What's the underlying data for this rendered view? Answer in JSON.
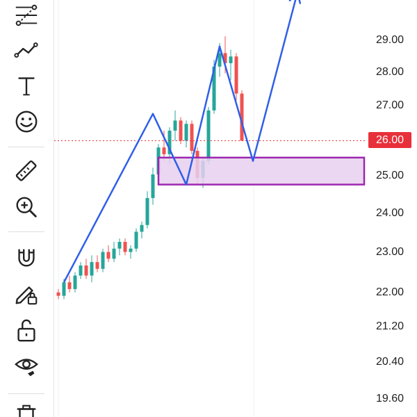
{
  "toolbar": {
    "tools": [
      {
        "name": "fib-retracement-icon"
      },
      {
        "name": "trend-line-icon"
      },
      {
        "name": "text-icon"
      },
      {
        "name": "emoji-icon"
      },
      {
        "name": "ruler-icon"
      },
      {
        "name": "zoom-in-icon"
      },
      {
        "name": "magnet-icon"
      },
      {
        "name": "pencil-lock-icon"
      },
      {
        "name": "unlock-icon"
      },
      {
        "name": "eye-icon"
      },
      {
        "name": "trash-icon"
      }
    ]
  },
  "price_axis": {
    "labels": [
      "29.00",
      "28.00",
      "27.00",
      "26.00",
      "25.00",
      "24.00",
      "23.00",
      "22.00",
      "21.20",
      "20.40",
      "19.60"
    ],
    "current_price": "26.00"
  },
  "colors": {
    "up": "#26a69a",
    "down": "#ef5350",
    "drawing_line": "#2f5fe8",
    "zone_fill": "#e7d0ef",
    "zone_border": "#9c27b0",
    "price_line": "#e8303a"
  },
  "chart_data": {
    "type": "candlestick",
    "candles": [
      [
        21.5,
        21.6,
        21.3,
        21.4
      ],
      [
        21.4,
        21.9,
        21.3,
        21.8
      ],
      [
        21.8,
        22.0,
        21.5,
        21.6
      ],
      [
        21.6,
        22.1,
        21.5,
        22.0
      ],
      [
        22.0,
        22.4,
        21.9,
        22.3
      ],
      [
        22.3,
        22.5,
        21.9,
        22.0
      ],
      [
        22.0,
        22.6,
        21.8,
        22.4
      ],
      [
        22.4,
        22.6,
        22.1,
        22.2
      ],
      [
        22.2,
        22.8,
        22.1,
        22.7
      ],
      [
        22.7,
        22.9,
        22.4,
        22.5
      ],
      [
        22.5,
        23.0,
        22.4,
        22.8
      ],
      [
        22.8,
        23.1,
        22.6,
        23.0
      ],
      [
        23.0,
        23.1,
        22.6,
        22.7
      ],
      [
        22.7,
        22.9,
        22.5,
        22.8
      ],
      [
        22.8,
        23.4,
        22.7,
        23.3
      ],
      [
        23.3,
        23.6,
        23.1,
        23.5
      ],
      [
        23.5,
        24.5,
        23.4,
        24.3
      ],
      [
        24.3,
        25.2,
        24.1,
        25.0
      ],
      [
        25.0,
        25.9,
        24.9,
        25.8
      ],
      [
        25.8,
        26.3,
        25.4,
        25.6
      ],
      [
        25.6,
        26.4,
        25.3,
        26.3
      ],
      [
        26.3,
        26.9,
        26.0,
        26.6
      ],
      [
        26.6,
        26.7,
        25.9,
        26.0
      ],
      [
        26.0,
        26.6,
        25.8,
        26.5
      ],
      [
        26.5,
        26.6,
        25.6,
        25.7
      ],
      [
        25.7,
        25.8,
        24.7,
        24.9
      ],
      [
        24.9,
        25.5,
        24.6,
        25.4
      ],
      [
        25.4,
        27.0,
        25.3,
        26.9
      ],
      [
        26.9,
        28.4,
        26.8,
        28.2
      ],
      [
        28.2,
        28.9,
        27.9,
        28.6
      ],
      [
        28.6,
        29.1,
        28.0,
        28.3
      ],
      [
        28.3,
        28.7,
        27.8,
        28.5
      ],
      [
        28.5,
        28.6,
        27.2,
        27.4
      ],
      [
        27.4,
        27.5,
        26.0,
        26.0
      ]
    ],
    "drawings": {
      "trend_path": [
        [
          1,
          21.8
        ],
        [
          17,
          26.8
        ],
        [
          23,
          24.7
        ],
        [
          29,
          28.8
        ],
        [
          35,
          25.4
        ],
        [
          43,
          30.4
        ]
      ],
      "zone": {
        "x_start": 18,
        "x_end": 55,
        "top": 25.5,
        "bottom": 24.7
      },
      "current_price_line": 26.0
    },
    "y_axis": [
      "29.00",
      "28.00",
      "27.00",
      "26.00",
      "25.00",
      "24.00",
      "23.00",
      "22.00",
      "21.20",
      "20.40",
      "19.60"
    ]
  }
}
